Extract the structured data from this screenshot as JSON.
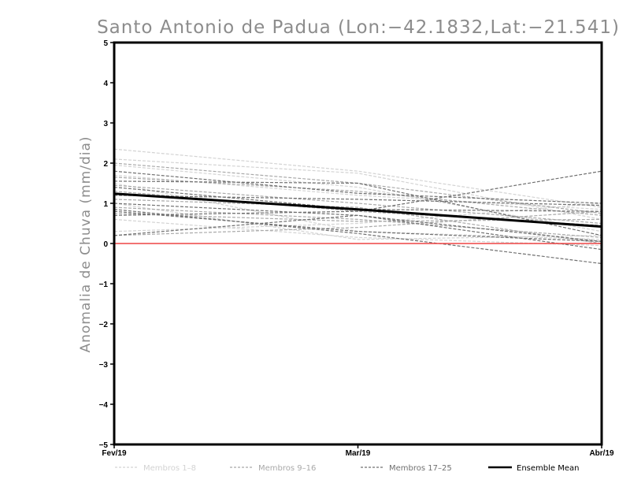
{
  "chart_data": {
    "type": "line",
    "title": "Santo Antonio de Padua (Lon:−42.1832,Lat:−21.541)",
    "xlabel": "",
    "ylabel": "Anomalia de Chuva (mm/dia)",
    "categories": [
      "Fev/19",
      "Mar/19",
      "Abr/19"
    ],
    "yticks": [
      "−5",
      "−4",
      "−3",
      "−2",
      "−1",
      "0",
      "1",
      "2",
      "3",
      "4",
      "5"
    ],
    "ylim": [
      -5,
      5
    ],
    "zero_line_color": "#ee4444",
    "legend": [
      {
        "label": "Membros 1–8",
        "color": "#d3d3d3",
        "style": "dashed"
      },
      {
        "label": "Membros 9–16",
        "color": "#a9a9a9",
        "style": "dashed"
      },
      {
        "label": "Membros 17–25",
        "color": "#707070",
        "style": "dashed"
      },
      {
        "label": "Ensemble Mean",
        "color": "#000000",
        "style": "solid"
      }
    ],
    "groups": [
      {
        "name": "Membros 1–8",
        "color": "#d3d3d3",
        "series": [
          {
            "values": [
              2.35,
              1.8,
              0.9
            ]
          },
          {
            "values": [
              2.1,
              1.75,
              0.6
            ]
          },
          {
            "values": [
              1.95,
              1.4,
              0.3
            ]
          },
          {
            "values": [
              1.7,
              1.2,
              0.85
            ]
          },
          {
            "values": [
              1.5,
              0.3,
              0.1
            ]
          },
          {
            "values": [
              1.0,
              0.1,
              0.2
            ]
          },
          {
            "values": [
              0.6,
              0.15,
              -0.05
            ]
          },
          {
            "values": [
              0.3,
              0.5,
              1.0
            ]
          }
        ]
      },
      {
        "name": "Membros 9–16",
        "color": "#a9a9a9",
        "series": [
          {
            "values": [
              2.0,
              1.5,
              0.75
            ]
          },
          {
            "values": [
              1.65,
              1.3,
              0.7
            ]
          },
          {
            "values": [
              1.45,
              1.0,
              0.5
            ]
          },
          {
            "values": [
              1.3,
              0.8,
              0.45
            ]
          },
          {
            "values": [
              1.1,
              0.9,
              0.0
            ]
          },
          {
            "values": [
              0.9,
              0.6,
              0.15
            ]
          },
          {
            "values": [
              0.75,
              0.55,
              0.6
            ]
          },
          {
            "values": [
              0.2,
              0.4,
              0.8
            ]
          }
        ]
      },
      {
        "name": "Membros 17–25",
        "color": "#707070",
        "series": [
          {
            "values": [
              1.8,
              1.25,
              1.0
            ]
          },
          {
            "values": [
              1.55,
              1.5,
              0.2
            ]
          },
          {
            "values": [
              1.4,
              0.85,
              0.8
            ]
          },
          {
            "values": [
              1.2,
              1.1,
              0.95
            ]
          },
          {
            "values": [
              1.0,
              0.7,
              -0.15
            ]
          },
          {
            "values": [
              0.85,
              0.25,
              -0.5
            ]
          },
          {
            "values": [
              0.8,
              0.3,
              0.05
            ]
          },
          {
            "values": [
              0.7,
              0.8,
              1.8
            ]
          },
          {
            "values": [
              0.2,
              0.7,
              0.05
            ]
          }
        ]
      }
    ],
    "mean": {
      "name": "Ensemble Mean",
      "color": "#000000",
      "values": [
        1.24,
        0.85,
        0.42
      ]
    }
  }
}
